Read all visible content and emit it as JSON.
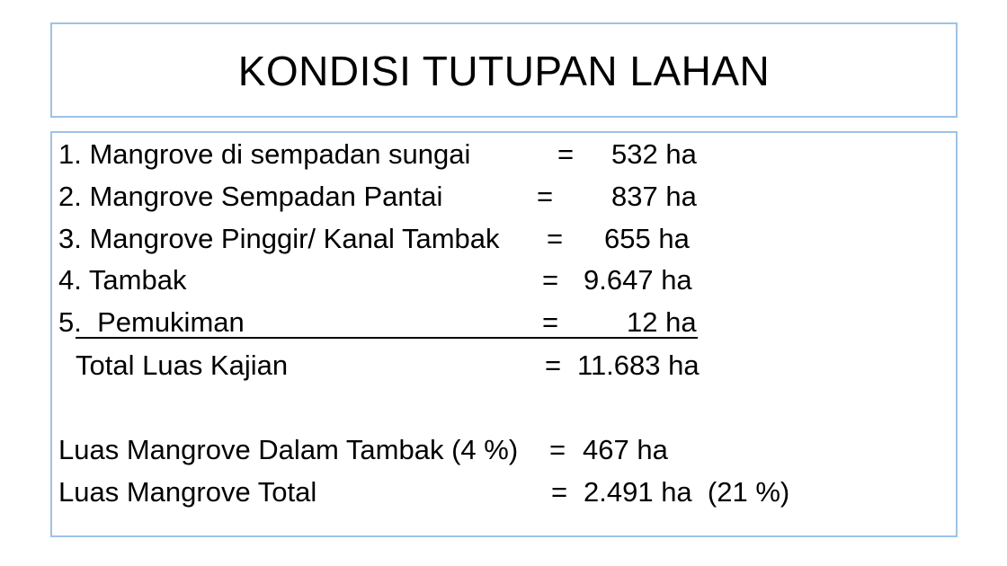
{
  "title": "KONDISI TUTUPAN LAHAN",
  "items": [
    {
      "label": "1. Mangrove di sempadan sungai",
      "eq": "=",
      "value": "532 ha"
    },
    {
      "label": "2. Mangrove Sempadan Pantai",
      "eq": "=",
      "value": "837 ha"
    },
    {
      "label": "3. Mangrove Pinggir/ Kanal Tambak",
      "eq": "=",
      "value": "655 ha"
    },
    {
      "label": "4. Tambak",
      "eq": "=",
      "value": "9.647 ha"
    },
    {
      "label": "5.  Pemukiman",
      "eq": "=",
      "value": "12 ha"
    }
  ],
  "total": {
    "label": "Total Luas Kajian",
    "eq": "=",
    "value": "11.683 ha"
  },
  "mangrove_dalam_tambak": {
    "label": "Luas Mangrove Dalam Tambak (4 %)",
    "eq": "=",
    "value": "467 ha"
  },
  "mangrove_total": {
    "label": "Luas Mangrove Total",
    "eq": "=",
    "value": "2.491 ha  (21 %)"
  },
  "colors": {
    "border": "#9dc3e6",
    "text": "#000000",
    "background": "#ffffff"
  }
}
